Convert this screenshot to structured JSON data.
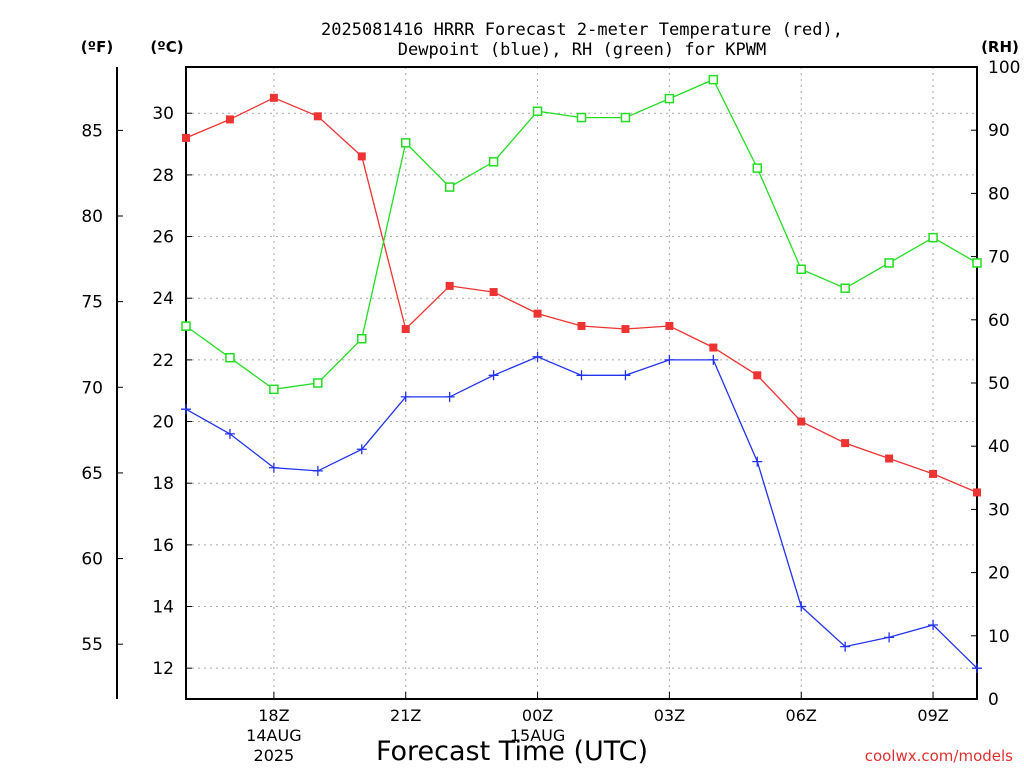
{
  "chart_data": {
    "type": "line",
    "title_line1": "2025081416 HRRR Forecast 2-meter Temperature (red),",
    "title_line2": "Dewpoint (blue), RH (green) for KPWM",
    "left_outer_unit": "(ºF)",
    "left_inner_unit": "(ºC)",
    "right_unit": "(RH)",
    "xlabel": "Forecast Time (UTC)",
    "credit": "coolwx.com/models",
    "hours": [
      16,
      17,
      18,
      19,
      20,
      21,
      22,
      23,
      24,
      25,
      26,
      27,
      28,
      29,
      30,
      31,
      32,
      33,
      34
    ],
    "xlim": [
      16,
      34
    ],
    "x_ticks": [
      {
        "hour": 18,
        "label": "18Z",
        "sub": [
          "14AUG",
          "2025"
        ]
      },
      {
        "hour": 21,
        "label": "21Z",
        "sub": []
      },
      {
        "hour": 24,
        "label": "00Z",
        "sub": [
          "15AUG"
        ]
      },
      {
        "hour": 27,
        "label": "03Z",
        "sub": []
      },
      {
        "hour": 30,
        "label": "06Z",
        "sub": []
      },
      {
        "hour": 33,
        "label": "09Z",
        "sub": []
      }
    ],
    "celsius_axis": {
      "ylim": [
        11,
        31.5
      ],
      "ticks": [
        12,
        14,
        16,
        18,
        20,
        22,
        24,
        26,
        28,
        30
      ]
    },
    "fahrenheit_axis": {
      "ticks": [
        55,
        60,
        65,
        70,
        75,
        80,
        85
      ]
    },
    "rh_axis": {
      "ylim": [
        0,
        100
      ],
      "ticks": [
        0,
        10,
        20,
        30,
        40,
        50,
        60,
        70,
        80,
        90,
        100
      ]
    },
    "grid": true,
    "series": [
      {
        "name": "Temperature",
        "color": "#ee3333",
        "marker": "filled-square",
        "axis": "celsius",
        "values": [
          29.2,
          29.8,
          30.5,
          29.9,
          28.6,
          23.0,
          24.4,
          24.2,
          23.5,
          23.1,
          23.0,
          23.1,
          22.4,
          21.5,
          20.0,
          19.3,
          18.8,
          18.3,
          17.7
        ]
      },
      {
        "name": "Dewpoint",
        "color": "#2233ee",
        "marker": "plus",
        "axis": "celsius",
        "values": [
          20.4,
          19.6,
          18.5,
          18.4,
          19.1,
          20.8,
          20.8,
          21.5,
          22.1,
          21.5,
          21.5,
          22.0,
          22.0,
          18.7,
          14.0,
          12.7,
          13.0,
          13.4,
          12.0
        ]
      },
      {
        "name": "RH",
        "color": "#22dd22",
        "marker": "open-square",
        "axis": "rh",
        "values": [
          59,
          54,
          49,
          50,
          57,
          88,
          81,
          85,
          93,
          92,
          92,
          95,
          98,
          84,
          68,
          65,
          69,
          73,
          69
        ]
      }
    ]
  }
}
